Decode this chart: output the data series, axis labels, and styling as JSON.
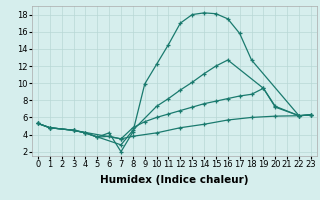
{
  "lines": [
    {
      "x": [
        0,
        1,
        3,
        4,
        5,
        6,
        7,
        8,
        9,
        10,
        11,
        12,
        13,
        14,
        15,
        16,
        17,
        18,
        22,
        23
      ],
      "y": [
        5.3,
        4.8,
        4.5,
        4.2,
        3.7,
        4.2,
        2.0,
        4.3,
        9.9,
        12.2,
        14.5,
        17.0,
        18.0,
        18.2,
        18.1,
        17.5,
        15.8,
        12.7,
        6.2,
        6.3
      ]
    },
    {
      "x": [
        0,
        1,
        3,
        4,
        7,
        8,
        10,
        11,
        12,
        13,
        14,
        15,
        16,
        19,
        20,
        22,
        23
      ],
      "y": [
        5.3,
        4.8,
        4.5,
        4.2,
        2.8,
        4.5,
        7.3,
        8.2,
        9.2,
        10.1,
        11.1,
        12.0,
        12.7,
        9.4,
        7.2,
        6.2,
        6.3
      ]
    },
    {
      "x": [
        0,
        1,
        3,
        7,
        8,
        9,
        10,
        11,
        12,
        13,
        14,
        15,
        16,
        17,
        18,
        19,
        20,
        22,
        23
      ],
      "y": [
        5.3,
        4.8,
        4.5,
        3.5,
        4.8,
        5.5,
        6.0,
        6.4,
        6.8,
        7.2,
        7.6,
        7.9,
        8.2,
        8.5,
        8.7,
        9.4,
        7.3,
        6.2,
        6.3
      ]
    },
    {
      "x": [
        0,
        1,
        3,
        4,
        5,
        6,
        7,
        8,
        10,
        12,
        14,
        16,
        18,
        20,
        22,
        23
      ],
      "y": [
        5.3,
        4.8,
        4.5,
        4.2,
        3.7,
        3.8,
        3.5,
        3.8,
        4.2,
        4.8,
        5.2,
        5.7,
        6.0,
        6.15,
        6.2,
        6.3
      ]
    }
  ],
  "xlabel": "Humidex (Indice chaleur)",
  "xlim": [
    -0.5,
    23.5
  ],
  "ylim": [
    1.5,
    19
  ],
  "yticks": [
    2,
    4,
    6,
    8,
    10,
    12,
    14,
    16,
    18
  ],
  "xticks": [
    0,
    1,
    2,
    3,
    4,
    5,
    6,
    7,
    8,
    9,
    10,
    11,
    12,
    13,
    14,
    15,
    16,
    17,
    18,
    19,
    20,
    21,
    22,
    23
  ],
  "bg_color": "#d6eeed",
  "grid_color": "#b8d8d5",
  "line_color": "#1a7a6e",
  "tick_fontsize": 6,
  "xlabel_fontsize": 7.5
}
